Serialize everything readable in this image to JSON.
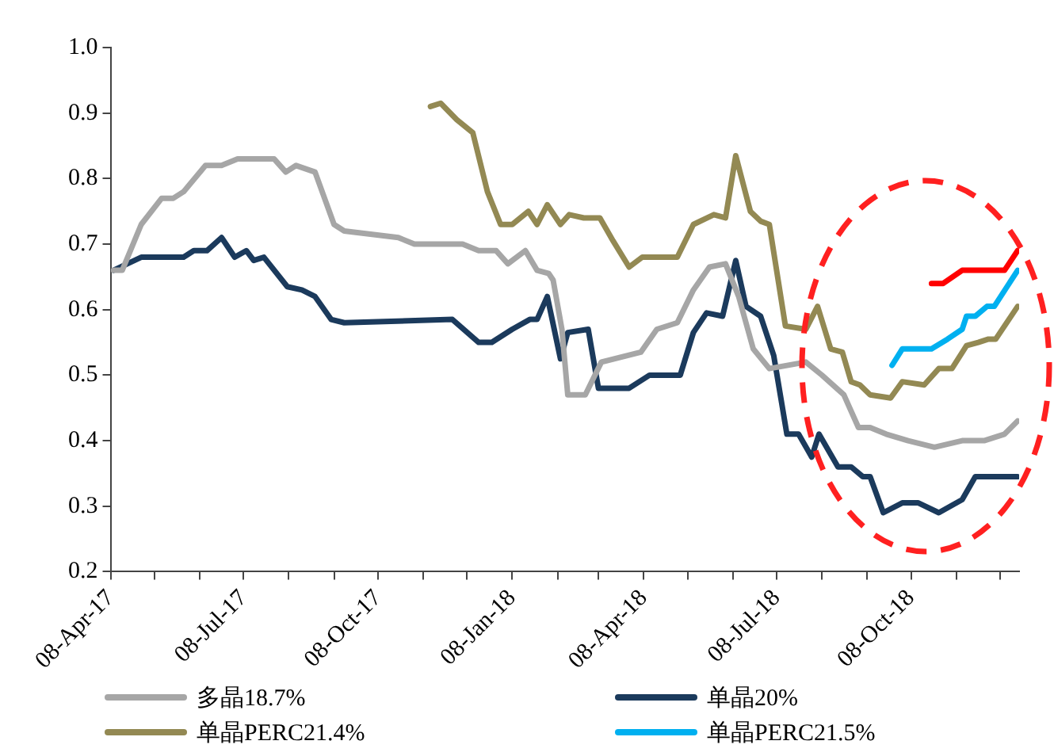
{
  "chart_data": {
    "type": "line",
    "xlim": [
      "2017-04-08",
      "2018-12-21"
    ],
    "xticks": [
      {
        "value": "2017-04-08",
        "label": "08-Apr-17"
      },
      {
        "value": "2017-05-08",
        "label": null
      },
      {
        "value": "2017-06-08",
        "label": null
      },
      {
        "value": "2017-07-08",
        "label": "08-Jul-17"
      },
      {
        "value": "2017-08-08",
        "label": null
      },
      {
        "value": "2017-09-08",
        "label": null
      },
      {
        "value": "2017-10-08",
        "label": "08-Oct-17"
      },
      {
        "value": "2017-11-08",
        "label": null
      },
      {
        "value": "2017-12-08",
        "label": null
      },
      {
        "value": "2018-01-08",
        "label": "08-Jan-18"
      },
      {
        "value": "2018-02-08",
        "label": null
      },
      {
        "value": "2018-03-08",
        "label": null
      },
      {
        "value": "2018-04-08",
        "label": "08-Apr-18"
      },
      {
        "value": "2018-05-08",
        "label": null
      },
      {
        "value": "2018-06-08",
        "label": null
      },
      {
        "value": "2018-07-08",
        "label": "08-Jul-18"
      },
      {
        "value": "2018-08-08",
        "label": null
      },
      {
        "value": "2018-09-08",
        "label": null
      },
      {
        "value": "2018-10-08",
        "label": "08-Oct-18"
      },
      {
        "value": "2018-11-08",
        "label": null
      },
      {
        "value": "2018-12-08",
        "label": null
      }
    ],
    "ylim": [
      0.2,
      1.0
    ],
    "yticks": [
      0.2,
      0.3,
      0.4,
      0.5,
      0.6,
      0.7,
      0.8,
      0.9,
      {
        "value": 1.0,
        "label": "1.0"
      }
    ],
    "grid": false,
    "legend": "bottom",
    "marker": "none",
    "line_style": "solid",
    "series": [
      {
        "name": "多晶18.7%",
        "color": "#a6a6a6",
        "x": [
          "2017-04-10",
          "2017-04-16",
          "2017-04-29",
          "2017-05-13",
          "2017-05-21",
          "2017-05-28",
          "2017-06-12",
          "2017-06-23",
          "2017-07-04",
          "2017-07-29",
          "2017-08-06",
          "2017-08-13",
          "2017-08-26",
          "2017-09-08",
          "2017-09-15",
          "2017-10-22",
          "2017-11-02",
          "2017-12-05",
          "2017-12-16",
          "2017-12-28",
          "2018-01-05",
          "2018-01-17",
          "2018-01-25",
          "2018-02-02",
          "2018-02-05",
          "2018-02-11",
          "2018-02-15",
          "2018-02-27",
          "2018-03-10",
          "2018-04-06",
          "2018-04-17",
          "2018-05-01",
          "2018-05-12",
          "2018-05-23",
          "2018-06-03",
          "2018-06-12",
          "2018-06-22",
          "2018-07-03",
          "2018-07-28",
          "2018-08-08",
          "2018-08-23",
          "2018-09-02",
          "2018-09-10",
          "2018-09-21",
          "2018-10-06",
          "2018-10-24",
          "2018-11-12",
          "2018-11-27",
          "2018-12-11",
          "2018-12-20"
        ],
        "values": [
          0.66,
          0.66,
          0.73,
          0.77,
          0.77,
          0.78,
          0.82,
          0.82,
          0.83,
          0.83,
          0.81,
          0.82,
          0.81,
          0.73,
          0.72,
          0.71,
          0.7,
          0.7,
          0.69,
          0.69,
          0.67,
          0.69,
          0.66,
          0.655,
          0.645,
          0.57,
          0.47,
          0.47,
          0.52,
          0.535,
          0.57,
          0.58,
          0.63,
          0.665,
          0.67,
          0.62,
          0.54,
          0.51,
          0.52,
          0.5,
          0.47,
          0.42,
          0.42,
          0.41,
          0.4,
          0.39,
          0.4,
          0.4,
          0.41,
          0.43
        ]
      },
      {
        "name": "单晶20%",
        "color": "#1b3a5c",
        "x": [
          "2017-04-10",
          "2017-04-29",
          "2017-05-28",
          "2017-06-04",
          "2017-06-13",
          "2017-06-23",
          "2017-07-02",
          "2017-07-10",
          "2017-07-15",
          "2017-07-22",
          "2017-08-07",
          "2017-08-17",
          "2017-08-26",
          "2017-09-06",
          "2017-09-15",
          "2017-11-28",
          "2017-12-16",
          "2017-12-25",
          "2018-01-08",
          "2018-01-20",
          "2018-01-25",
          "2018-02-01",
          "2018-02-10",
          "2018-02-15",
          "2018-03-01",
          "2018-03-08",
          "2018-03-29",
          "2018-04-12",
          "2018-05-03",
          "2018-05-12",
          "2018-05-21",
          "2018-06-01",
          "2018-06-10",
          "2018-06-17",
          "2018-06-27",
          "2018-07-06",
          "2018-07-15",
          "2018-07-23",
          "2018-08-01",
          "2018-08-06",
          "2018-08-19",
          "2018-08-28",
          "2018-09-05",
          "2018-09-10",
          "2018-09-19",
          "2018-10-02",
          "2018-10-13",
          "2018-10-27",
          "2018-11-12",
          "2018-11-21",
          "2018-12-20"
        ],
        "values": [
          0.66,
          0.68,
          0.68,
          0.69,
          0.69,
          0.71,
          0.68,
          0.69,
          0.675,
          0.68,
          0.635,
          0.63,
          0.62,
          0.585,
          0.58,
          0.585,
          0.55,
          0.55,
          0.57,
          0.585,
          0.585,
          0.62,
          0.525,
          0.565,
          0.57,
          0.48,
          0.48,
          0.5,
          0.5,
          0.565,
          0.595,
          0.59,
          0.675,
          0.605,
          0.59,
          0.53,
          0.41,
          0.41,
          0.375,
          0.41,
          0.36,
          0.36,
          0.345,
          0.345,
          0.29,
          0.305,
          0.305,
          0.29,
          0.31,
          0.345,
          0.345
        ]
      },
      {
        "name": "单晶PERC21.4%",
        "color": "#938953",
        "x": [
          "2017-11-13",
          "2017-11-20",
          "2017-12-01",
          "2017-12-12",
          "2017-12-22",
          "2017-12-31",
          "2018-01-08",
          "2018-01-19",
          "2018-01-25",
          "2018-02-01",
          "2018-02-10",
          "2018-02-16",
          "2018-02-26",
          "2018-03-09",
          "2018-03-18",
          "2018-03-29",
          "2018-04-07",
          "2018-05-01",
          "2018-05-12",
          "2018-05-26",
          "2018-06-03",
          "2018-06-10",
          "2018-06-20",
          "2018-06-27",
          "2018-07-03",
          "2018-07-14",
          "2018-07-28",
          "2018-08-05",
          "2018-08-14",
          "2018-08-22",
          "2018-08-28",
          "2018-09-03",
          "2018-09-10",
          "2018-09-24",
          "2018-10-02",
          "2018-10-17",
          "2018-10-27",
          "2018-11-05",
          "2018-11-15",
          "2018-11-23",
          "2018-11-30",
          "2018-12-05",
          "2018-12-20"
        ],
        "values": [
          0.91,
          0.915,
          0.89,
          0.87,
          0.78,
          0.73,
          0.73,
          0.75,
          0.73,
          0.76,
          0.73,
          0.745,
          0.74,
          0.74,
          0.705,
          0.665,
          0.68,
          0.68,
          0.73,
          0.745,
          0.74,
          0.835,
          0.75,
          0.735,
          0.73,
          0.575,
          0.57,
          0.605,
          0.54,
          0.535,
          0.49,
          0.485,
          0.47,
          0.465,
          0.49,
          0.485,
          0.51,
          0.51,
          0.545,
          0.55,
          0.555,
          0.555,
          0.605
        ]
      },
      {
        "name": "单晶PERC21.5%",
        "color": "#00b0f0",
        "x": [
          "2018-09-25",
          "2018-10-02",
          "2018-10-22",
          "2018-11-02",
          "2018-11-12",
          "2018-11-15",
          "2018-11-21",
          "2018-11-29",
          "2018-12-04",
          "2018-12-20"
        ],
        "values": [
          0.515,
          0.54,
          0.54,
          0.555,
          0.57,
          0.59,
          0.59,
          0.605,
          0.605,
          0.66
        ]
      },
      {
        "color": "#ff0000",
        "x": [
          "2018-10-22",
          "2018-10-30",
          "2018-11-12",
          "2018-12-11",
          "2018-12-20"
        ],
        "values": [
          0.64,
          0.64,
          0.66,
          0.66,
          0.69
        ]
      }
    ]
  }
}
